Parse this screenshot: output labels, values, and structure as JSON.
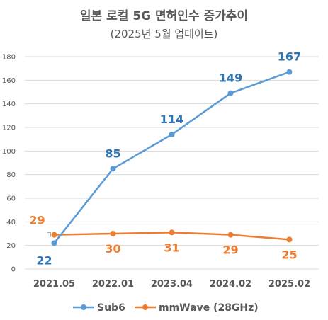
{
  "title": "일본 로컬 5G 면허인수 증가추이",
  "subtitle": "(2025년 5월 업데이트)",
  "colors": {
    "sub6": "#5b9bd5",
    "mmwave": "#ed7d31",
    "sub6_label": "#2e75b6",
    "grid": "#d9d9d9"
  },
  "chart_data": {
    "type": "line",
    "categories": [
      "2021.05",
      "2022.01",
      "2023.04",
      "2024.02",
      "2025.02"
    ],
    "ylim": [
      0,
      180
    ],
    "yticks": [
      0,
      20,
      40,
      60,
      80,
      100,
      120,
      140,
      160,
      180
    ],
    "grid": true,
    "legend": "bottom",
    "series": [
      {
        "name": "Sub6",
        "values": [
          22,
          85,
          114,
          149,
          167
        ]
      },
      {
        "name": "mmWave (28GHz)",
        "values": [
          29,
          30,
          31,
          29,
          25
        ]
      }
    ]
  }
}
